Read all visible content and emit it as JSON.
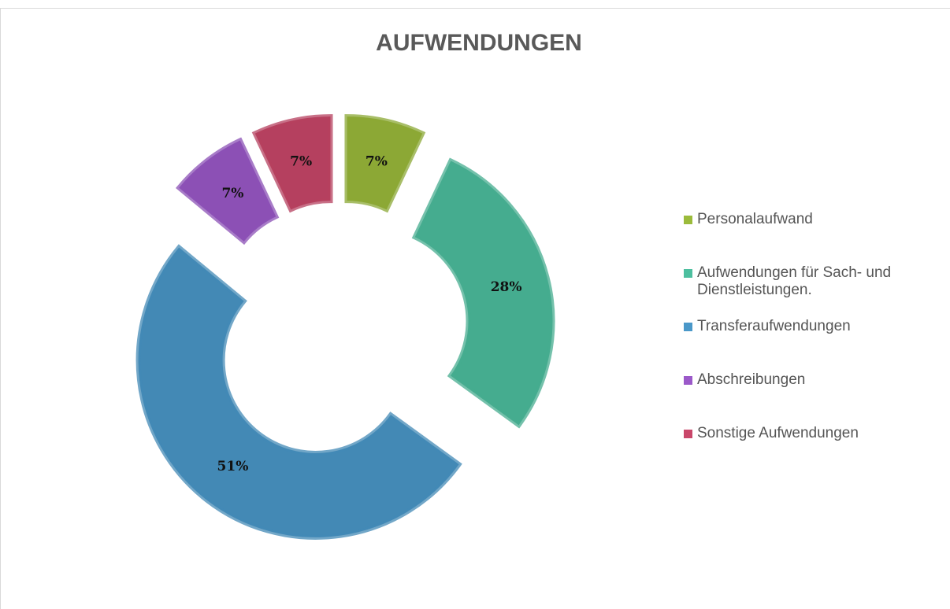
{
  "chart_data": {
    "type": "donut",
    "title": "AUFWENDUNGEN",
    "categories": [
      "Personalaufwand",
      "Aufwendungen für Sach- und Dienstleistungen.",
      "Transferaufwendungen",
      "Abschreibungen",
      "Sonstige Aufwendungen"
    ],
    "values": [
      7,
      28,
      51,
      7,
      7
    ],
    "value_labels": [
      "7%",
      "28%",
      "51%",
      "7%",
      "7%"
    ],
    "colors": [
      "#9bbb3b",
      "#4dbf9f",
      "#4a98c9",
      "#9b59c9",
      "#c9476a"
    ],
    "legend": "right"
  }
}
